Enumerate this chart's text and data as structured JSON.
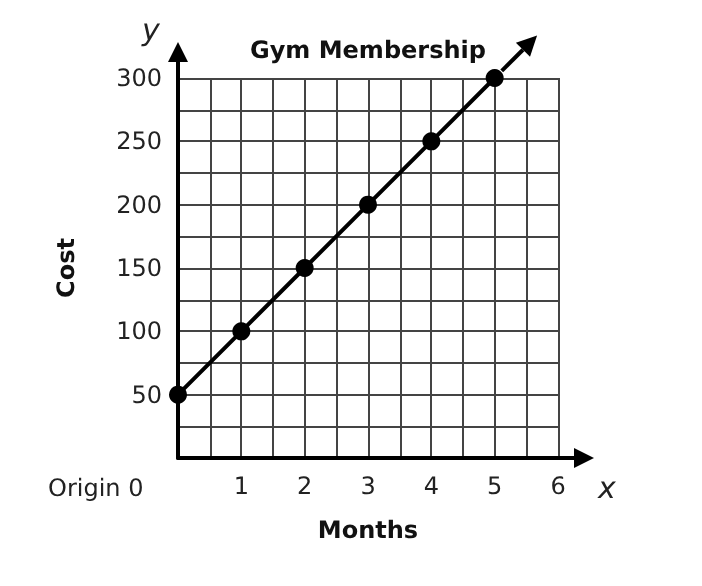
{
  "chart_data": {
    "type": "line",
    "title": "Gym Membership",
    "xlabel": "Months",
    "ylabel": "Cost",
    "x": [
      0,
      1,
      2,
      3,
      4,
      5
    ],
    "series": [
      {
        "color": "#000000",
        "values": [
          50,
          100,
          150,
          200,
          250,
          300
        ]
      }
    ],
    "xlim": [
      0,
      6
    ],
    "xticks": [
      {
        "value": 0.5,
        "label": null
      },
      1,
      {
        "value": 1.5,
        "label": null
      },
      2,
      {
        "value": 2.5,
        "label": null
      },
      3,
      {
        "value": 3.5,
        "label": null
      },
      4,
      {
        "value": 4.5,
        "label": null
      },
      5,
      {
        "value": 5.5,
        "label": null
      },
      6
    ],
    "ylim": [
      0,
      300
    ],
    "yticks": [
      {
        "value": 25,
        "label": null
      },
      50,
      {
        "value": 75,
        "label": null
      },
      100,
      {
        "value": 125,
        "label": null
      },
      150,
      {
        "value": 175,
        "label": null
      },
      200,
      {
        "value": 225,
        "label": null
      },
      250,
      {
        "value": 275,
        "label": null
      },
      300
    ],
    "grid": true,
    "marker": "circle",
    "line_style": "solid",
    "annotations": [
      "Origin 0",
      "x",
      "y"
    ]
  }
}
